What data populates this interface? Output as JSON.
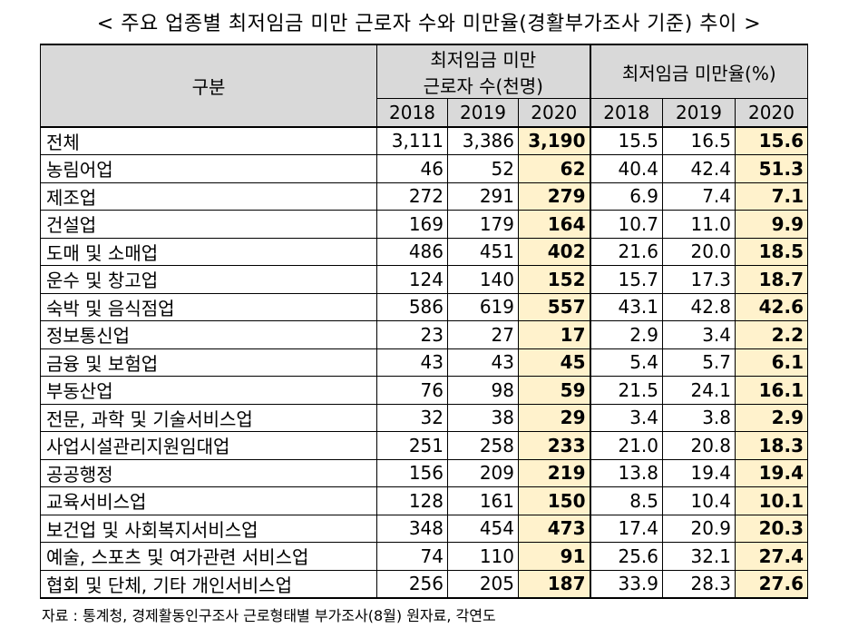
{
  "title": "< 주요 업종별 최저임금 미만 근로자 수와 미만율(경활부가조사 기준) 추이 >",
  "header": {
    "category": "구분",
    "group1_line1": "최저임금 미만",
    "group1_line2": "근로자 수(천명)",
    "group2": "최저임금 미만율(%)",
    "years": [
      "2018",
      "2019",
      "2020",
      "2018",
      "2019",
      "2020"
    ]
  },
  "rows": [
    {
      "label": "전체",
      "v": [
        "3,111",
        "3,386",
        "3,190",
        "15.5",
        "16.5",
        "15.6"
      ]
    },
    {
      "label": "농림어업",
      "v": [
        "46",
        "52",
        "62",
        "40.4",
        "42.4",
        "51.3"
      ]
    },
    {
      "label": "제조업",
      "v": [
        "272",
        "291",
        "279",
        "6.9",
        "7.4",
        "7.1"
      ]
    },
    {
      "label": "건설업",
      "v": [
        "169",
        "179",
        "164",
        "10.7",
        "11.0",
        "9.9"
      ]
    },
    {
      "label": "도매 및 소매업",
      "v": [
        "486",
        "451",
        "402",
        "21.6",
        "20.0",
        "18.5"
      ]
    },
    {
      "label": "운수 및 창고업",
      "v": [
        "124",
        "140",
        "152",
        "15.7",
        "17.3",
        "18.7"
      ]
    },
    {
      "label": "숙박 및 음식점업",
      "v": [
        "586",
        "619",
        "557",
        "43.1",
        "42.8",
        "42.6"
      ]
    },
    {
      "label": "정보통신업",
      "v": [
        "23",
        "27",
        "17",
        "2.9",
        "3.4",
        "2.2"
      ]
    },
    {
      "label": "금융 및 보험업",
      "v": [
        "43",
        "43",
        "45",
        "5.4",
        "5.7",
        "6.1"
      ]
    },
    {
      "label": "부동산업",
      "v": [
        "76",
        "98",
        "59",
        "21.5",
        "24.1",
        "16.1"
      ]
    },
    {
      "label": "전문, 과학 및 기술서비스업",
      "v": [
        "32",
        "38",
        "29",
        "3.4",
        "3.8",
        "2.9"
      ]
    },
    {
      "label": "사업시설관리지원임대업",
      "v": [
        "251",
        "258",
        "233",
        "21.0",
        "20.8",
        "18.3"
      ]
    },
    {
      "label": "공공행정",
      "v": [
        "156",
        "209",
        "219",
        "13.8",
        "19.4",
        "19.4"
      ]
    },
    {
      "label": "교육서비스업",
      "v": [
        "128",
        "161",
        "150",
        "8.5",
        "10.4",
        "10.1"
      ]
    },
    {
      "label": "보건업 및 사회복지서비스업",
      "v": [
        "348",
        "454",
        "473",
        "17.4",
        "20.9",
        "20.3"
      ]
    },
    {
      "label": "예술, 스포츠 및 여가관련 서비스업",
      "v": [
        "74",
        "110",
        "91",
        "25.6",
        "32.1",
        "27.4"
      ]
    },
    {
      "label": "협회 및 단체, 기타 개인서비스업",
      "v": [
        "256",
        "205",
        "187",
        "33.9",
        "28.3",
        "27.6"
      ]
    }
  ],
  "note": "자료 : 통계청, 경제활동인구조사 근로형태별 부가조사(8월) 원자료, 각연도",
  "colors": {
    "header_bg": "#d9d9d9",
    "highlight_bg": "#fff2cc"
  }
}
